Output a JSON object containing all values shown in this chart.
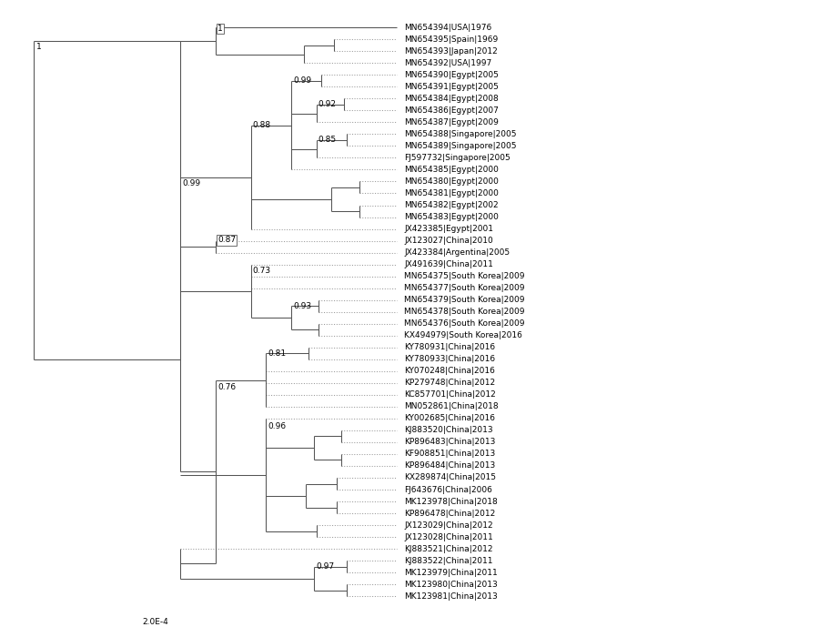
{
  "taxa": [
    "MN654394|USA|1976",
    "MN654395|Spain|1969",
    "MN654393|Japan|2012",
    "MN654392|USA|1997",
    "MN654390|Egypt|2005",
    "MN654391|Egypt|2005",
    "MN654384|Egypt|2008",
    "MN654386|Egypt|2007",
    "MN654387|Egypt|2009",
    "MN654388|Singapore|2005",
    "MN654389|Singapore|2005",
    "FJ597732|Singapore|2005",
    "MN654385|Egypt|2000",
    "MN654380|Egypt|2000",
    "MN654381|Egypt|2000",
    "MN654382|Egypt|2002",
    "MN654383|Egypt|2000",
    "JX423385|Egypt|2001",
    "JX123027|China|2010",
    "JX423384|Argentina|2005",
    "JX491639|China|2011",
    "MN654375|South Korea|2009",
    "MN654377|South Korea|2009",
    "MN654379|South Korea|2009",
    "MN654378|South Korea|2009",
    "MN654376|South Korea|2009",
    "KX494979|South Korea|2016",
    "KY780931|China|2016",
    "KY780933|China|2016",
    "KY070248|China|2016",
    "KP279748|China|2012",
    "KC857701|China|2012",
    "MN052861|China|2018",
    "KY002685|China|2016",
    "KJ883520|China|2013",
    "KP896483|China|2013",
    "KF908851|China|2013",
    "KP896484|China|2013",
    "KX289874|China|2015",
    "FJ643676|China|2006",
    "MK123978|China|2018",
    "KP896478|China|2012",
    "JX123029|China|2012",
    "JX123028|China|2011",
    "KJ883521|China|2012",
    "KJ883522|China|2011",
    "MK123979|China|2011",
    "MK123980|China|2013",
    "MK123981|China|2013"
  ],
  "line_color": "#555555",
  "dot_color": "#999999",
  "text_color": "#000000",
  "bg_color": "#ffffff",
  "scale_label": "2.0E-4",
  "lfs": 6.5,
  "nlfs": 6.5,
  "lw": 0.75
}
